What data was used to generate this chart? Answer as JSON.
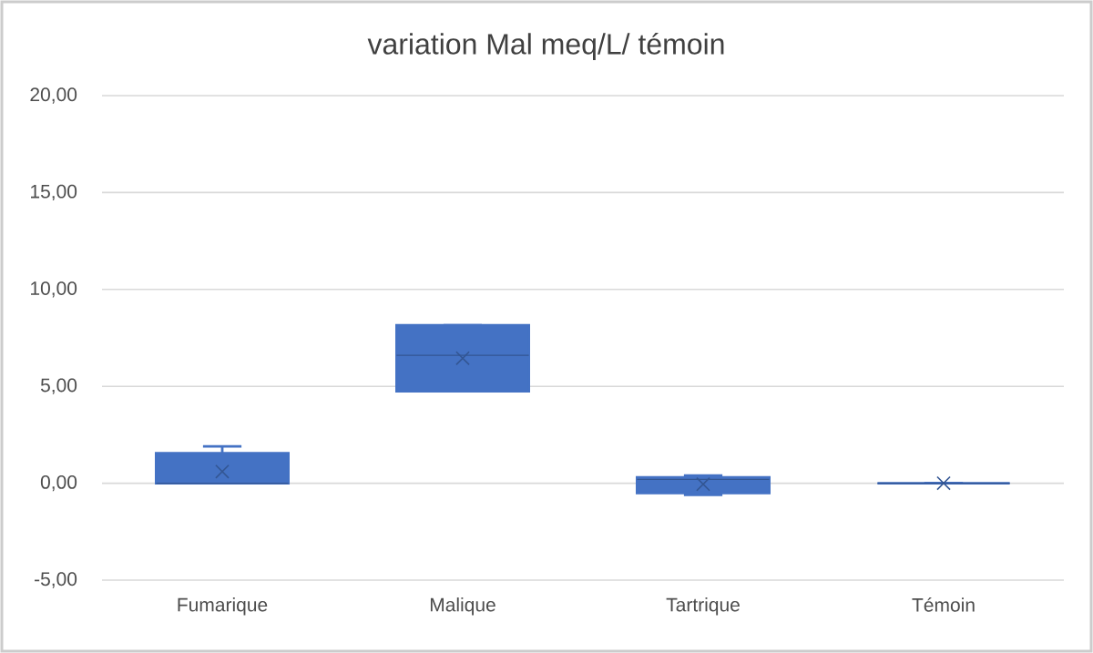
{
  "chart_data": {
    "type": "box",
    "title": "variation Mal meq/L/ témoin",
    "categories": [
      "Fumarique",
      "Malique",
      "Tartrique",
      "Témoin"
    ],
    "boxes": [
      {
        "low": 0,
        "q1": 0,
        "median": 0,
        "q3": 1.55,
        "high": 1.9,
        "mean": 0.6
      },
      {
        "low": 4.75,
        "q1": 4.75,
        "median": 6.6,
        "q3": 8.15,
        "high": 8.15,
        "mean": 6.45
      },
      {
        "low": -0.6,
        "q1": -0.5,
        "median": 0.2,
        "q3": 0.3,
        "high": 0.4,
        "mean": -0.05
      },
      {
        "low": 0,
        "q1": 0,
        "median": 0,
        "q3": 0,
        "high": 0,
        "mean": 0
      }
    ],
    "color": "#4472c4",
    "ylim": [
      -5,
      20
    ],
    "yticks": [
      {
        "value": -5,
        "label": "-5,00"
      },
      {
        "value": 0,
        "label": "0,00"
      },
      {
        "value": 5,
        "label": "5,00"
      },
      {
        "value": 10,
        "label": "10,00"
      },
      {
        "value": 15,
        "label": "15,00"
      },
      {
        "value": 20,
        "label": "20,00"
      }
    ],
    "grid": "y",
    "marker": "cross"
  }
}
